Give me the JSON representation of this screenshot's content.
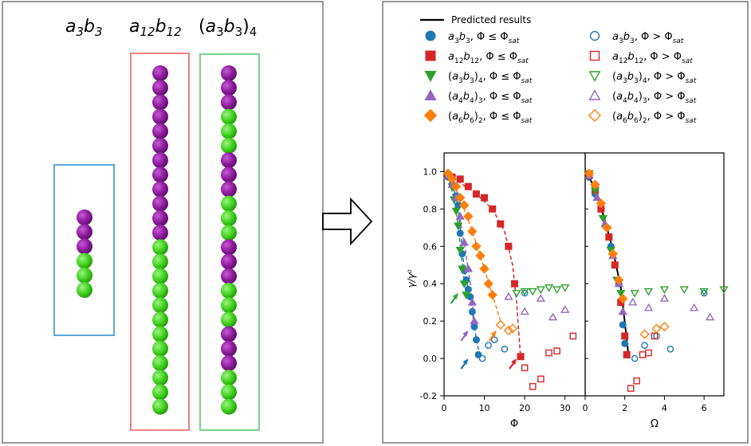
{
  "colors": {
    "purple": "#8b1a9a",
    "green": "#3fcf1c",
    "blue_box": "#5fa8d8",
    "red_box": "#f08080",
    "green_box": "#7ad08a",
    "s_blue": "#1f77b4",
    "s_red": "#d62728",
    "s_green": "#2ca02c",
    "s_violet": "#9467bd",
    "s_orange": "#ff7f0e"
  },
  "chains": [
    {
      "label": "a3b3",
      "sequence": "PPPGGG"
    },
    {
      "label": "a12b12",
      "sequence": "PPPPPPPPPPPPGGGGGGGGGGGG"
    },
    {
      "label": "(a3b3)4",
      "sequence": "PPPGGGPPPGGGPPPGGGPPPGGG"
    }
  ],
  "legend": {
    "predicted": "Predicted results",
    "phi": "Φ",
    "le": "≤",
    "gt": ">",
    "sat": "sat",
    "items": [
      {
        "key": "a3b3",
        "color": "s_blue",
        "marker": "circle"
      },
      {
        "key": "a12b12",
        "color": "s_red",
        "marker": "square"
      },
      {
        "key": "(a3b3)4",
        "color": "s_green",
        "marker": "triangle-down"
      },
      {
        "key": "(a4b4)3",
        "color": "s_violet",
        "marker": "triangle-up"
      },
      {
        "key": "(a6b6)2",
        "color": "s_orange",
        "marker": "diamond"
      }
    ]
  },
  "chart_data": [
    {
      "type": "scatter",
      "xlabel": "Φ",
      "ylabel": "γ/γ⁰",
      "xlim": [
        0,
        35
      ],
      "ylim": [
        -0.2,
        1.1
      ],
      "xticks": [
        0,
        10,
        20,
        30
      ],
      "yticks": [
        -0.2,
        0.0,
        0.2,
        0.4,
        0.6,
        0.8,
        1.0
      ],
      "series": [
        {
          "color": "s_blue",
          "marker": "circle",
          "filled": true,
          "points": [
            [
              1,
              0.97
            ],
            [
              2,
              0.93
            ],
            [
              3,
              0.87
            ],
            [
              3.5,
              0.82
            ],
            [
              4,
              0.67
            ],
            [
              4.5,
              0.56
            ],
            [
              5,
              0.47
            ],
            [
              5.5,
              0.42
            ],
            [
              6,
              0.37
            ],
            [
              6.5,
              0.33
            ],
            [
              7,
              0.25
            ],
            [
              7.5,
              0.17
            ],
            [
              8,
              0.1
            ],
            [
              8.5,
              0.02
            ]
          ]
        },
        {
          "color": "s_blue",
          "marker": "circle",
          "filled": false,
          "points": [
            [
              9.5,
              0.0
            ],
            [
              11,
              0.07
            ],
            [
              12.5,
              0.1
            ],
            [
              15,
              0.05
            ],
            [
              20,
              0.35
            ]
          ]
        },
        {
          "color": "s_red",
          "marker": "square",
          "filled": true,
          "points": [
            [
              2,
              0.97
            ],
            [
              4,
              0.96
            ],
            [
              6,
              0.92
            ],
            [
              8,
              0.88
            ],
            [
              10,
              0.86
            ],
            [
              12,
              0.8
            ],
            [
              14,
              0.72
            ],
            [
              16,
              0.6
            ],
            [
              17.5,
              0.4
            ],
            [
              19,
              0.01
            ]
          ]
        },
        {
          "color": "s_red",
          "marker": "square",
          "filled": false,
          "points": [
            [
              20,
              -0.05
            ],
            [
              22,
              -0.15
            ],
            [
              24,
              -0.11
            ],
            [
              26,
              0.03
            ],
            [
              28,
              0.04
            ],
            [
              32,
              0.12
            ]
          ]
        },
        {
          "color": "s_green",
          "marker": "triangle-down",
          "filled": true,
          "points": [
            [
              1,
              0.98
            ],
            [
              2,
              0.92
            ],
            [
              2.5,
              0.85
            ],
            [
              3,
              0.79
            ],
            [
              3.5,
              0.71
            ],
            [
              4,
              0.58
            ],
            [
              4.5,
              0.48
            ],
            [
              5,
              0.4
            ],
            [
              5.5,
              0.34
            ]
          ]
        },
        {
          "color": "s_green",
          "marker": "triangle-down",
          "filled": false,
          "points": [
            [
              18,
              0.35
            ],
            [
              20,
              0.36
            ],
            [
              22,
              0.36
            ],
            [
              24,
              0.37
            ],
            [
              26,
              0.38
            ],
            [
              28,
              0.37
            ],
            [
              30,
              0.38
            ]
          ]
        },
        {
          "color": "s_violet",
          "marker": "triangle-up",
          "filled": true,
          "points": [
            [
              1,
              0.98
            ],
            [
              2,
              0.93
            ],
            [
              3,
              0.86
            ],
            [
              4,
              0.76
            ],
            [
              5,
              0.62
            ],
            [
              6,
              0.48
            ],
            [
              7,
              0.3
            ],
            [
              7.5,
              0.2
            ]
          ]
        },
        {
          "color": "s_violet",
          "marker": "triangle-up",
          "filled": false,
          "points": [
            [
              16,
              0.33
            ],
            [
              20,
              0.25
            ],
            [
              24,
              0.32
            ],
            [
              27,
              0.22
            ],
            [
              30,
              0.26
            ]
          ]
        },
        {
          "color": "s_orange",
          "marker": "diamond",
          "filled": true,
          "points": [
            [
              1,
              0.99
            ],
            [
              2,
              0.96
            ],
            [
              3,
              0.92
            ],
            [
              4,
              0.86
            ],
            [
              5,
              0.82
            ],
            [
              6,
              0.76
            ],
            [
              7,
              0.68
            ],
            [
              8,
              0.6
            ],
            [
              9,
              0.55
            ],
            [
              10,
              0.48
            ],
            [
              11,
              0.4
            ],
            [
              12,
              0.34
            ]
          ]
        },
        {
          "color": "s_orange",
          "marker": "diamond",
          "filled": false,
          "points": [
            [
              14,
              0.18
            ],
            [
              16,
              0.15
            ],
            [
              17,
              0.16
            ]
          ]
        }
      ],
      "curves": [
        {
          "color": "s_blue",
          "points": [
            [
              1,
              0.97
            ],
            [
              3,
              0.87
            ],
            [
              4,
              0.7
            ],
            [
              5,
              0.48
            ],
            [
              6,
              0.37
            ],
            [
              7,
              0.25
            ],
            [
              8,
              0.1
            ],
            [
              9,
              0.0
            ]
          ]
        },
        {
          "color": "s_red",
          "points": [
            [
              2,
              0.97
            ],
            [
              8,
              0.88
            ],
            [
              12,
              0.8
            ],
            [
              15,
              0.68
            ],
            [
              17,
              0.5
            ],
            [
              18,
              0.3
            ],
            [
              19,
              0.0
            ]
          ]
        },
        {
          "color": "s_green",
          "points": [
            [
              1,
              0.98
            ],
            [
              2.5,
              0.85
            ],
            [
              3.5,
              0.71
            ],
            [
              4.5,
              0.5
            ],
            [
              5.5,
              0.34
            ]
          ]
        },
        {
          "color": "s_violet",
          "points": [
            [
              1,
              0.98
            ],
            [
              3,
              0.86
            ],
            [
              5,
              0.62
            ],
            [
              6.5,
              0.4
            ],
            [
              7.5,
              0.2
            ]
          ]
        },
        {
          "color": "s_orange",
          "points": [
            [
              1,
              0.99
            ],
            [
              4,
              0.86
            ],
            [
              7,
              0.68
            ],
            [
              10,
              0.48
            ],
            [
              12,
              0.34
            ],
            [
              14,
              0.2
            ]
          ]
        }
      ],
      "arrows": [
        {
          "color": "s_blue",
          "at": [
            6,
            0.0
          ]
        },
        {
          "color": "s_red",
          "at": [
            18,
            0.0
          ]
        },
        {
          "color": "s_green",
          "at": [
            3.5,
            0.35
          ]
        },
        {
          "color": "s_violet",
          "at": [
            6,
            0.15
          ]
        },
        {
          "color": "s_orange",
          "at": [
            13,
            0.15
          ]
        }
      ]
    },
    {
      "type": "scatter",
      "xlabel": "Ω",
      "xlim": [
        0,
        7
      ],
      "ylim": [
        -0.2,
        1.1
      ],
      "xticks": [
        0,
        2,
        4,
        6
      ],
      "series": [
        {
          "color": "s_blue",
          "marker": "circle",
          "filled": true,
          "points": [
            [
              0.2,
              0.97
            ],
            [
              0.5,
              0.88
            ],
            [
              0.8,
              0.8
            ],
            [
              1.1,
              0.7
            ],
            [
              1.3,
              0.6
            ],
            [
              1.5,
              0.5
            ],
            [
              1.7,
              0.4
            ],
            [
              1.8,
              0.3
            ],
            [
              1.9,
              0.18
            ],
            [
              2.0,
              0.08
            ],
            [
              2.1,
              0.02
            ]
          ]
        },
        {
          "color": "s_blue",
          "marker": "circle",
          "filled": false,
          "points": [
            [
              2.5,
              0.0
            ],
            [
              3.0,
              0.07
            ],
            [
              3.6,
              0.12
            ],
            [
              4.3,
              0.05
            ],
            [
              6.0,
              0.35
            ]
          ]
        },
        {
          "color": "s_red",
          "marker": "square",
          "filled": true,
          "points": [
            [
              0.2,
              0.98
            ],
            [
              0.5,
              0.9
            ],
            [
              0.8,
              0.8
            ],
            [
              1.2,
              0.65
            ],
            [
              1.5,
              0.5
            ],
            [
              1.8,
              0.3
            ],
            [
              2.0,
              0.12
            ],
            [
              2.1,
              0.02
            ]
          ]
        },
        {
          "color": "s_red",
          "marker": "square",
          "filled": false,
          "points": [
            [
              2.3,
              -0.16
            ],
            [
              2.6,
              -0.12
            ],
            [
              2.9,
              0.02
            ],
            [
              3.2,
              0.03
            ],
            [
              3.5,
              0.12
            ]
          ]
        },
        {
          "color": "s_green",
          "marker": "triangle-down",
          "filled": true,
          "points": [
            [
              0.2,
              0.99
            ],
            [
              0.5,
              0.9
            ],
            [
              0.9,
              0.75
            ],
            [
              1.3,
              0.58
            ],
            [
              1.6,
              0.42
            ],
            [
              1.8,
              0.35
            ]
          ]
        },
        {
          "color": "s_green",
          "marker": "triangle-down",
          "filled": false,
          "points": [
            [
              2.5,
              0.35
            ],
            [
              3.2,
              0.36
            ],
            [
              4.0,
              0.37
            ],
            [
              5.0,
              0.37
            ],
            [
              6.0,
              0.36
            ],
            [
              7.0,
              0.37
            ]
          ]
        },
        {
          "color": "s_violet",
          "marker": "triangle-up",
          "filled": true,
          "points": [
            [
              0.2,
              0.98
            ],
            [
              0.6,
              0.86
            ],
            [
              1.0,
              0.72
            ],
            [
              1.4,
              0.55
            ],
            [
              1.7,
              0.4
            ],
            [
              1.9,
              0.25
            ]
          ]
        },
        {
          "color": "s_violet",
          "marker": "triangle-up",
          "filled": false,
          "points": [
            [
              2.4,
              0.3
            ],
            [
              3.2,
              0.27
            ],
            [
              4.0,
              0.32
            ],
            [
              5.5,
              0.27
            ],
            [
              6.3,
              0.22
            ]
          ]
        },
        {
          "color": "s_orange",
          "marker": "diamond",
          "filled": true,
          "points": [
            [
              0.2,
              0.99
            ],
            [
              0.5,
              0.93
            ],
            [
              0.8,
              0.83
            ],
            [
              1.1,
              0.7
            ],
            [
              1.4,
              0.56
            ],
            [
              1.7,
              0.42
            ],
            [
              1.9,
              0.32
            ]
          ]
        },
        {
          "color": "s_orange",
          "marker": "diamond",
          "filled": false,
          "points": [
            [
              3.0,
              0.13
            ],
            [
              3.6,
              0.16
            ],
            [
              4.0,
              0.17
            ]
          ]
        }
      ],
      "curves": [
        {
          "color": "#000000",
          "points": [
            [
              0.1,
              1.0
            ],
            [
              0.5,
              0.9
            ],
            [
              1.0,
              0.74
            ],
            [
              1.4,
              0.58
            ],
            [
              1.8,
              0.38
            ],
            [
              2.1,
              0.1
            ],
            [
              2.2,
              0.0
            ]
          ]
        }
      ]
    }
  ]
}
